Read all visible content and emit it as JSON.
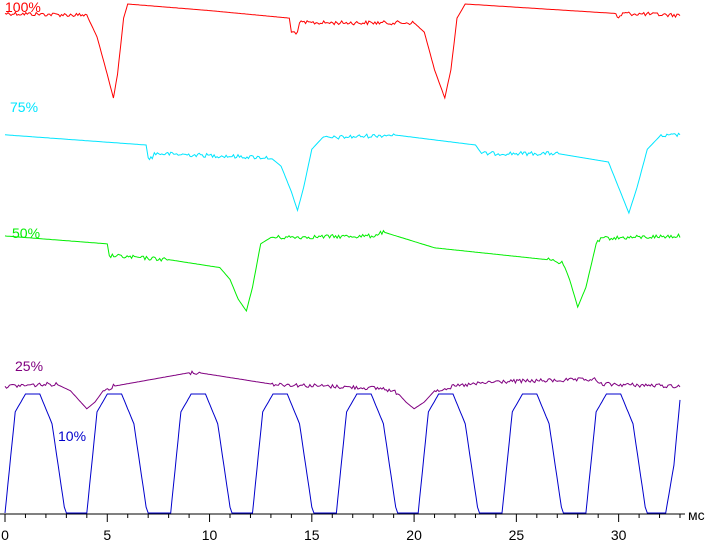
{
  "chart_data": {
    "type": "line",
    "xlabel": "мс",
    "xlim": [
      0,
      33
    ],
    "x_ticks": [
      0,
      5,
      10,
      15,
      20,
      25,
      30
    ],
    "x_tick_labels": [
      "0",
      "5",
      "10",
      "15",
      "20",
      "25",
      "30"
    ],
    "grid": false,
    "legend": "none",
    "series": [
      {
        "name": "100%",
        "color": "#ff0000",
        "x": [
          0,
          4.0,
          4.5,
          5.0,
          5.3,
          5.5,
          5.8,
          6.0,
          10.0,
          13.9,
          14.0,
          14.3,
          14.4,
          20.0,
          20.5,
          21.0,
          21.5,
          21.8,
          22.1,
          22.5,
          29.8,
          30.0,
          30.2,
          33
        ],
        "y": [
          0.9,
          0.88,
          0.65,
          0.25,
          0.0,
          0.25,
          0.85,
          1.0,
          0.93,
          0.85,
          0.7,
          0.7,
          0.8,
          0.8,
          0.7,
          0.3,
          0.0,
          0.3,
          0.85,
          1.0,
          0.9,
          0.85,
          0.9,
          0.88
        ]
      },
      {
        "name": "75%",
        "color": "#00e5ff",
        "x": [
          0,
          6.9,
          7.0,
          7.2,
          7.3,
          13.0,
          13.5,
          14.0,
          14.3,
          14.6,
          15.0,
          15.5,
          19.0,
          23.0,
          23.3,
          27.0,
          29.5,
          30.0,
          30.5,
          30.9,
          31.4,
          32,
          33
        ],
        "y": [
          0.92,
          0.8,
          0.65,
          0.65,
          0.7,
          0.65,
          0.55,
          0.25,
          0.03,
          0.3,
          0.75,
          0.88,
          0.92,
          0.8,
          0.7,
          0.7,
          0.6,
          0.3,
          0.0,
          0.3,
          0.75,
          0.9,
          0.92
        ]
      },
      {
        "name": "50%",
        "color": "#00ee00",
        "x": [
          0,
          5.0,
          5.1,
          8.0,
          10.5,
          11.0,
          11.4,
          11.8,
          12.1,
          12.5,
          13.0,
          18.0,
          18.5,
          21.0,
          26.5,
          27.3,
          27.6,
          28.0,
          28.4,
          28.9,
          29.2,
          33
        ],
        "y": [
          0.95,
          0.85,
          0.7,
          0.65,
          0.55,
          0.4,
          0.15,
          0.0,
          0.3,
          0.85,
          0.93,
          0.95,
          1.0,
          0.8,
          0.65,
          0.6,
          0.4,
          0.05,
          0.3,
          0.85,
          0.92,
          0.95
        ]
      },
      {
        "name": "25%",
        "color": "#800080",
        "x": [
          0,
          2.5,
          3.2,
          3.6,
          4.0,
          4.4,
          4.8,
          5.3,
          9.0,
          9.5,
          13.0,
          18.5,
          19.2,
          19.6,
          20.0,
          20.5,
          21.0,
          22.0,
          24.0,
          28.9,
          29.0,
          33
        ],
        "y": [
          0.55,
          0.6,
          0.45,
          0.25,
          0.05,
          0.2,
          0.45,
          0.55,
          0.85,
          0.85,
          0.6,
          0.5,
          0.4,
          0.2,
          0.05,
          0.2,
          0.45,
          0.55,
          0.65,
          0.7,
          0.6,
          0.55
        ]
      },
      {
        "name": "10%",
        "color": "#0000cc",
        "x": [
          0,
          0.5,
          1.0,
          1.7,
          2.3,
          2.9,
          3.0,
          4.0,
          4.5,
          5.0,
          5.7,
          6.3,
          6.9,
          7.0,
          8.1,
          8.6,
          9.1,
          9.8,
          10.4,
          11.0,
          11.1,
          12.1,
          12.6,
          13.1,
          13.8,
          14.4,
          15.0,
          15.1,
          16.2,
          16.7,
          17.2,
          17.9,
          18.5,
          19.1,
          19.2,
          20.2,
          20.7,
          21.2,
          21.9,
          22.5,
          23.1,
          23.2,
          24.3,
          24.8,
          25.3,
          26.0,
          26.6,
          27.2,
          27.3,
          28.4,
          28.9,
          29.4,
          30.1,
          30.7,
          31.3,
          31.4,
          32.3,
          32.7,
          33
        ],
        "y": [
          0.0,
          0.85,
          1.0,
          1.0,
          0.75,
          0.05,
          0.0,
          0.0,
          0.85,
          1.0,
          1.0,
          0.75,
          0.05,
          0.0,
          0.0,
          0.85,
          1.0,
          1.0,
          0.75,
          0.05,
          0.0,
          0.0,
          0.85,
          1.0,
          1.0,
          0.75,
          0.05,
          0.0,
          0.0,
          0.85,
          1.0,
          1.0,
          0.75,
          0.05,
          0.0,
          0.0,
          0.85,
          1.0,
          1.0,
          0.75,
          0.05,
          0.0,
          0.0,
          0.85,
          1.0,
          1.0,
          0.75,
          0.05,
          0.0,
          0.0,
          0.85,
          1.0,
          1.0,
          0.75,
          0.05,
          0.0,
          0.0,
          0.4,
          0.95
        ]
      }
    ]
  }
}
